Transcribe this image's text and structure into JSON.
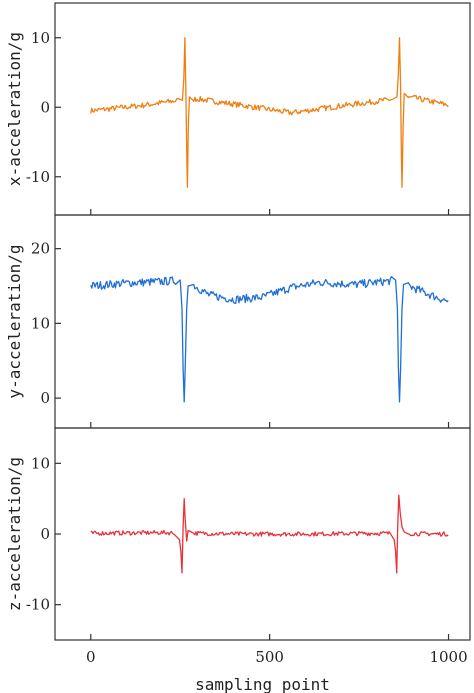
{
  "chart_data": [
    {
      "type": "line",
      "ylabel": "x-acceleration/g",
      "color": "#f07f10",
      "ylim": [
        -15.5,
        15
      ],
      "yticks": [
        -10,
        0,
        10
      ],
      "ytick_labels": [
        "-10",
        "0",
        "10"
      ],
      "xlim": [
        -100,
        1060
      ],
      "baseline": [
        [
          0,
          -0.5
        ],
        [
          150,
          0.3
        ],
        [
          260,
          1.1
        ],
        [
          300,
          1.2
        ],
        [
          420,
          0.3
        ],
        [
          560,
          -0.8
        ],
        [
          700,
          0.2
        ],
        [
          820,
          1.0
        ],
        [
          860,
          1.2
        ],
        [
          900,
          1.4
        ],
        [
          1000,
          0.3
        ]
      ],
      "noise": 0.4,
      "spikes": [
        {
          "x": 256,
          "y": 1.0
        },
        {
          "x": 260,
          "y": 4.0
        },
        {
          "x": 263,
          "y": 10.0
        },
        {
          "x": 266,
          "y": 2.0
        },
        {
          "x": 268,
          "y": -6.0
        },
        {
          "x": 270,
          "y": -11.5
        },
        {
          "x": 273,
          "y": -2.0
        },
        {
          "x": 276,
          "y": 1.5
        },
        {
          "x": 856,
          "y": 1.5
        },
        {
          "x": 860,
          "y": 5.0
        },
        {
          "x": 863,
          "y": 10.0
        },
        {
          "x": 866,
          "y": 3.0
        },
        {
          "x": 868,
          "y": -6.0
        },
        {
          "x": 870,
          "y": -11.5
        },
        {
          "x": 873,
          "y": -3.0
        },
        {
          "x": 876,
          "y": 2.0
        }
      ]
    },
    {
      "type": "line",
      "ylabel": "y-acceleration/g",
      "color": "#1f6fd6",
      "ylim": [
        -4,
        24.5
      ],
      "yticks": [
        0,
        10,
        20
      ],
      "ytick_labels": [
        "0",
        "10",
        "20"
      ],
      "xlim": [
        -100,
        1060
      ],
      "baseline": [
        [
          0,
          15.0
        ],
        [
          100,
          15.4
        ],
        [
          200,
          15.6
        ],
        [
          255,
          15.8
        ],
        [
          285,
          15.2
        ],
        [
          330,
          13.8
        ],
        [
          400,
          13.2
        ],
        [
          480,
          13.5
        ],
        [
          560,
          14.8
        ],
        [
          640,
          15.5
        ],
        [
          740,
          15.2
        ],
        [
          820,
          15.6
        ],
        [
          855,
          15.8
        ],
        [
          890,
          15.0
        ],
        [
          950,
          13.8
        ],
        [
          1000,
          12.9
        ]
      ],
      "noise": 0.55,
      "spikes": [
        {
          "x": 250,
          "y": 15.8
        },
        {
          "x": 255,
          "y": 12.0
        },
        {
          "x": 258,
          "y": 4.0
        },
        {
          "x": 261,
          "y": -0.5
        },
        {
          "x": 264,
          "y": 4.0
        },
        {
          "x": 268,
          "y": 12.0
        },
        {
          "x": 272,
          "y": 15.0
        },
        {
          "x": 852,
          "y": 15.8
        },
        {
          "x": 857,
          "y": 12.0
        },
        {
          "x": 860,
          "y": 4.0
        },
        {
          "x": 863,
          "y": -0.5
        },
        {
          "x": 866,
          "y": 4.0
        },
        {
          "x": 870,
          "y": 12.0
        },
        {
          "x": 874,
          "y": 15.2
        }
      ]
    },
    {
      "type": "line",
      "ylabel": "z-acceleration/g",
      "color": "#e8313a",
      "ylim": [
        -15,
        15
      ],
      "yticks": [
        -10,
        0,
        10
      ],
      "ytick_labels": [
        "-10",
        "0",
        "10"
      ],
      "xlim": [
        -100,
        1060
      ],
      "xlabel": "sampling point",
      "xticks": [
        0,
        500,
        1000
      ],
      "xtick_labels": [
        "0",
        "500",
        "1000"
      ],
      "baseline": [
        [
          0,
          0.1
        ],
        [
          200,
          0.2
        ],
        [
          400,
          0.0
        ],
        [
          600,
          0.0
        ],
        [
          800,
          0.1
        ],
        [
          1000,
          0.0
        ]
      ],
      "noise": 0.3,
      "spikes": [
        {
          "x": 248,
          "y": -0.8
        },
        {
          "x": 252,
          "y": -2.5
        },
        {
          "x": 255,
          "y": -5.5
        },
        {
          "x": 258,
          "y": 1.0
        },
        {
          "x": 261,
          "y": 5.0
        },
        {
          "x": 264,
          "y": 2.0
        },
        {
          "x": 268,
          "y": -1.0
        },
        {
          "x": 272,
          "y": 0.5
        },
        {
          "x": 848,
          "y": -0.8
        },
        {
          "x": 852,
          "y": -2.5
        },
        {
          "x": 855,
          "y": -5.5
        },
        {
          "x": 858,
          "y": 1.0
        },
        {
          "x": 861,
          "y": 5.5
        },
        {
          "x": 865,
          "y": 3.0
        },
        {
          "x": 870,
          "y": 1.0
        },
        {
          "x": 876,
          "y": 0.3
        }
      ]
    }
  ]
}
